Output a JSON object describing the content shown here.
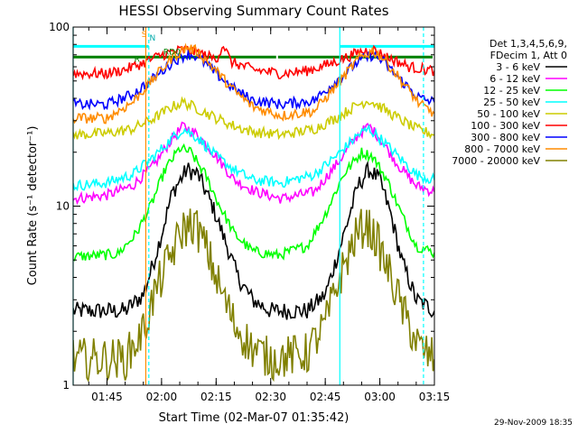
{
  "chart_data": {
    "type": "line",
    "title": "HESSI Observing Summary Count Rates",
    "xlabel": "Start Time (02-Mar-07 01:35:42)",
    "ylabel": "Count Rate (s⁻¹ detector⁻¹)",
    "y_scale": "log",
    "ylim": [
      1,
      100
    ],
    "xlim": [
      "01:35:42",
      "03:15:00"
    ],
    "x_ticks": [
      "01:45",
      "02:00",
      "02:15",
      "02:30",
      "02:45",
      "03:00",
      "03:15"
    ],
    "y_ticks": [
      "1",
      "10",
      "100"
    ],
    "grid": false,
    "legend_position": "right",
    "legend_header": [
      "Det 1,3,4,5,6,9,",
      "FDecim 1, Att 0"
    ],
    "annotations": [
      "S",
      "N",
      "RD0",
      "R"
    ],
    "series": [
      {
        "name": "3 - 6 keV",
        "color": "#000000",
        "points": [
          [
            "01:35:42",
            2.6
          ],
          [
            "01:50:00",
            2.6
          ],
          [
            "01:55:00",
            3.2
          ],
          [
            "01:58:00",
            5
          ],
          [
            "02:00:00",
            7
          ],
          [
            "02:03:00",
            12
          ],
          [
            "02:07:00",
            16
          ],
          [
            "02:10:00",
            15
          ],
          [
            "02:14:00",
            10
          ],
          [
            "02:18:00",
            6
          ],
          [
            "02:21:00",
            4
          ],
          [
            "02:25:00",
            3
          ],
          [
            "02:30:00",
            2.6
          ],
          [
            "02:40:00",
            2.6
          ],
          [
            "02:45:00",
            3.2
          ],
          [
            "02:48:00",
            5
          ],
          [
            "02:51:00",
            8
          ],
          [
            "02:54:00",
            13
          ],
          [
            "02:57:00",
            16
          ],
          [
            "03:00:00",
            14
          ],
          [
            "03:03:00",
            9
          ],
          [
            "03:06:00",
            5
          ],
          [
            "03:10:00",
            3
          ],
          [
            "03:15:00",
            2.6
          ]
        ]
      },
      {
        "name": "6 - 12 keV",
        "color": "#ff00ff",
        "points": [
          [
            "01:35:42",
            11
          ],
          [
            "01:45:00",
            11.5
          ],
          [
            "01:52:00",
            13
          ],
          [
            "01:58:00",
            17
          ],
          [
            "02:03:00",
            24
          ],
          [
            "02:06:00",
            28
          ],
          [
            "02:10:00",
            25
          ],
          [
            "02:15:00",
            19
          ],
          [
            "02:20:00",
            14
          ],
          [
            "02:26:00",
            12
          ],
          [
            "02:33:00",
            11
          ],
          [
            "02:42:00",
            12
          ],
          [
            "02:48:00",
            17
          ],
          [
            "02:54:00",
            25
          ],
          [
            "02:57:00",
            28
          ],
          [
            "03:00:00",
            24
          ],
          [
            "03:05:00",
            17
          ],
          [
            "03:10:00",
            13
          ],
          [
            "03:15:00",
            12
          ]
        ]
      },
      {
        "name": "12 - 25 keV",
        "color": "#00ff00",
        "points": [
          [
            "01:35:42",
            5.2
          ],
          [
            "01:48:00",
            5.4
          ],
          [
            "01:53:00",
            7
          ],
          [
            "01:57:00",
            10
          ],
          [
            "02:01:00",
            16
          ],
          [
            "02:05:00",
            21
          ],
          [
            "02:08:00",
            20
          ],
          [
            "02:12:00",
            15
          ],
          [
            "02:16:00",
            10
          ],
          [
            "02:20:00",
            7
          ],
          [
            "02:25:00",
            5.6
          ],
          [
            "02:32:00",
            5.3
          ],
          [
            "02:40:00",
            6
          ],
          [
            "02:45:00",
            9
          ],
          [
            "02:50:00",
            15
          ],
          [
            "02:55:00",
            20
          ],
          [
            "02:58:00",
            19
          ],
          [
            "03:02:00",
            14
          ],
          [
            "03:06:00",
            9
          ],
          [
            "03:10:00",
            6
          ],
          [
            "03:15:00",
            5.5
          ]
        ]
      },
      {
        "name": "25 - 50 keV",
        "color": "#00ffff",
        "points": [
          [
            "01:35:42",
            13
          ],
          [
            "01:45:00",
            13.5
          ],
          [
            "01:52:00",
            15
          ],
          [
            "01:58:00",
            19
          ],
          [
            "02:03:00",
            24
          ],
          [
            "02:06:00",
            27
          ],
          [
            "02:10:00",
            24
          ],
          [
            "02:15:00",
            19
          ],
          [
            "02:20:00",
            16
          ],
          [
            "02:25:00",
            14
          ],
          [
            "02:33:00",
            13.5
          ],
          [
            "02:42:00",
            15
          ],
          [
            "02:48:00",
            19
          ],
          [
            "02:54:00",
            25
          ],
          [
            "02:57:00",
            27
          ],
          [
            "03:00:00",
            24
          ],
          [
            "03:05:00",
            19
          ],
          [
            "03:10:00",
            15
          ],
          [
            "03:15:00",
            14
          ]
        ]
      },
      {
        "name": "50 - 100 keV",
        "color": "#cccc00",
        "points": [
          [
            "01:35:42",
            25
          ],
          [
            "01:45:00",
            25.5
          ],
          [
            "01:52:00",
            27
          ],
          [
            "01:58:00",
            31
          ],
          [
            "02:03:00",
            36
          ],
          [
            "02:06:00",
            38
          ],
          [
            "02:10:00",
            35
          ],
          [
            "02:15:00",
            31
          ],
          [
            "02:20:00",
            28
          ],
          [
            "02:25:00",
            26
          ],
          [
            "02:33:00",
            25
          ],
          [
            "02:42:00",
            27
          ],
          [
            "02:48:00",
            31
          ],
          [
            "02:54:00",
            37
          ],
          [
            "02:57:00",
            39
          ],
          [
            "03:00:00",
            36
          ],
          [
            "03:05:00",
            31
          ],
          [
            "03:10:00",
            27
          ],
          [
            "03:15:00",
            25
          ]
        ]
      },
      {
        "name": "100 - 300 keV",
        "color": "#ff0000",
        "points": [
          [
            "01:35:42",
            55
          ],
          [
            "01:45:00",
            55
          ],
          [
            "01:50:00",
            58
          ],
          [
            "01:55:00",
            63
          ],
          [
            "02:00:00",
            70
          ],
          [
            "02:06:00",
            75
          ],
          [
            "02:10:00",
            72
          ],
          [
            "02:15:00",
            66
          ],
          [
            "02:17:00",
            80
          ],
          [
            "02:19:00",
            64
          ],
          [
            "02:25:00",
            58
          ],
          [
            "02:33:00",
            55
          ],
          [
            "02:40:00",
            57
          ],
          [
            "02:47:00",
            63
          ],
          [
            "02:54:00",
            72
          ],
          [
            "02:58:00",
            75
          ],
          [
            "03:02:00",
            68
          ],
          [
            "03:08:00",
            60
          ],
          [
            "03:15:00",
            57
          ]
        ]
      },
      {
        "name": "300 - 800 keV",
        "color": "#0000ff",
        "points": [
          [
            "01:35:42",
            37
          ],
          [
            "01:45:00",
            37
          ],
          [
            "01:52:00",
            42
          ],
          [
            "01:58:00",
            52
          ],
          [
            "02:03:00",
            64
          ],
          [
            "02:07:00",
            71
          ],
          [
            "02:10:00",
            68
          ],
          [
            "02:15:00",
            55
          ],
          [
            "02:20:00",
            45
          ],
          [
            "02:25:00",
            39
          ],
          [
            "02:33:00",
            37
          ],
          [
            "02:42:00",
            39
          ],
          [
            "02:48:00",
            50
          ],
          [
            "02:54:00",
            64
          ],
          [
            "02:58:00",
            70
          ],
          [
            "03:01:00",
            64
          ],
          [
            "03:06:00",
            50
          ],
          [
            "03:11:00",
            40
          ],
          [
            "03:15:00",
            38
          ]
        ]
      },
      {
        "name": "800 - 7000 keV",
        "color": "#ff8c00",
        "points": [
          [
            "01:35:42",
            31
          ],
          [
            "01:45:00",
            31
          ],
          [
            "01:52:00",
            38
          ],
          [
            "01:58:00",
            52
          ],
          [
            "02:03:00",
            68
          ],
          [
            "02:07:00",
            77
          ],
          [
            "02:10:00",
            73
          ],
          [
            "02:15:00",
            57
          ],
          [
            "02:20:00",
            44
          ],
          [
            "02:25:00",
            36
          ],
          [
            "02:33:00",
            32
          ],
          [
            "02:42:00",
            34
          ],
          [
            "02:48:00",
            47
          ],
          [
            "02:54:00",
            66
          ],
          [
            "02:58:00",
            74
          ],
          [
            "03:01:00",
            67
          ],
          [
            "03:06:00",
            50
          ],
          [
            "03:11:00",
            37
          ],
          [
            "03:15:00",
            33
          ]
        ]
      },
      {
        "name": "7000 - 20000 keV",
        "color": "#808000",
        "points": [
          [
            "01:35:42",
            1.4
          ],
          [
            "01:50:00",
            1.4
          ],
          [
            "01:55:00",
            2
          ],
          [
            "01:58:00",
            3.2
          ],
          [
            "02:02:00",
            5
          ],
          [
            "02:06:00",
            7.5
          ],
          [
            "02:09:00",
            8
          ],
          [
            "02:12:00",
            6
          ],
          [
            "02:16:00",
            3.5
          ],
          [
            "02:20:00",
            2.2
          ],
          [
            "02:25:00",
            1.6
          ],
          [
            "02:30:00",
            1.4
          ],
          [
            "02:40:00",
            1.5
          ],
          [
            "02:45:00",
            2.2
          ],
          [
            "02:49:00",
            4
          ],
          [
            "02:53:00",
            6.5
          ],
          [
            "02:56:00",
            8
          ],
          [
            "02:59:00",
            6.5
          ],
          [
            "03:03:00",
            4
          ],
          [
            "03:07:00",
            2.4
          ],
          [
            "03:11:00",
            1.6
          ],
          [
            "03:15:00",
            1.4
          ]
        ]
      }
    ],
    "flags": [
      {
        "name": "SAA",
        "color": "#00ffff",
        "level": 78,
        "spans": [
          [
            "01:35:42",
            "01:56:30"
          ],
          [
            "02:49:00",
            "03:15:00"
          ]
        ]
      },
      {
        "name": "Night",
        "color": "#008000",
        "level": 68,
        "spans": [
          [
            "01:35:42",
            "02:32:00"
          ],
          [
            "02:32:00",
            "03:15:00"
          ]
        ]
      }
    ],
    "vlines": [
      {
        "time": "01:35:42",
        "color": "#00ffff",
        "dash": false
      },
      {
        "time": "01:55:40",
        "color": "#ff8c00",
        "dash": false
      },
      {
        "time": "01:56:30",
        "color": "#00ffff",
        "dash": true
      },
      {
        "time": "02:49:00",
        "color": "#00ffff",
        "dash": false
      },
      {
        "time": "03:12:00",
        "color": "#00ffff",
        "dash": true
      }
    ]
  },
  "footer": "29-Nov-2009 18:35"
}
